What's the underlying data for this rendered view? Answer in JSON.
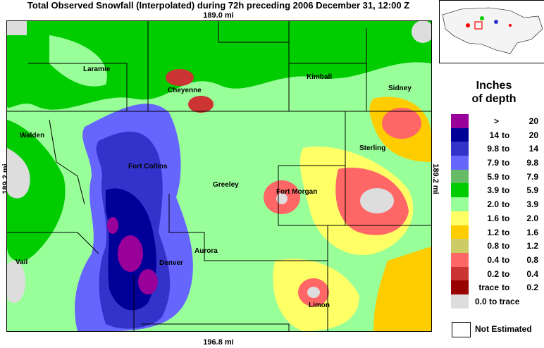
{
  "title": "Total Observed Snowfall (Interpolated) during 72h preceding 2006 December 31, 12:00 Z",
  "scale": {
    "top": "189.0 mi",
    "bottom": "196.8 mi",
    "left": "189.2 mi",
    "right": "189.2 mi"
  },
  "legend": {
    "title_line1": "Inches",
    "title_line2": "of depth",
    "rows": [
      {
        "lo": ">",
        "to": "",
        "hi": "20",
        "color": "#990099"
      },
      {
        "lo": "14",
        "to": "to",
        "hi": "20",
        "color": "#000099"
      },
      {
        "lo": "9.8",
        "to": "to",
        "hi": "14",
        "color": "#3333cc"
      },
      {
        "lo": "7.9",
        "to": "to",
        "hi": "9.8",
        "color": "#6666ff"
      },
      {
        "lo": "5.9",
        "to": "to",
        "hi": "7.9",
        "color": "#66bb66"
      },
      {
        "lo": "3.9",
        "to": "to",
        "hi": "5.9",
        "color": "#00cc00"
      },
      {
        "lo": "2.0",
        "to": "to",
        "hi": "3.9",
        "color": "#99ff99"
      },
      {
        "lo": "1.6",
        "to": "to",
        "hi": "2.0",
        "color": "#ffff66"
      },
      {
        "lo": "1.2",
        "to": "to",
        "hi": "1.6",
        "color": "#ffcc00"
      },
      {
        "lo": "0.8",
        "to": "to",
        "hi": "1.2",
        "color": "#cccc66"
      },
      {
        "lo": "0.4",
        "to": "to",
        "hi": "0.8",
        "color": "#ff6666"
      },
      {
        "lo": "0.2",
        "to": "to",
        "hi": "0.4",
        "color": "#cc3333"
      },
      {
        "lo": "trace",
        "to": "to",
        "hi": "0.2",
        "color": "#990000"
      },
      {
        "full": "0.0 to trace",
        "color": "#dddddd"
      }
    ],
    "not_estimated": "Not Estimated"
  },
  "cities": {
    "laramie": "Laramie",
    "cheyenne": "Cheyenne",
    "kimball": "Kimball",
    "sidney": "Sidney",
    "walden": "Walden",
    "fort_collins": "Fort Collins",
    "greeley": "Greeley",
    "sterling": "Sterling",
    "fort_morgan": "Fort Morgan",
    "aurora": "Aurora",
    "vail": "Vail",
    "denver": "Denver",
    "limon": "Limon"
  },
  "colors": {
    "background": "#99ff99",
    "border_line": "#000000"
  }
}
